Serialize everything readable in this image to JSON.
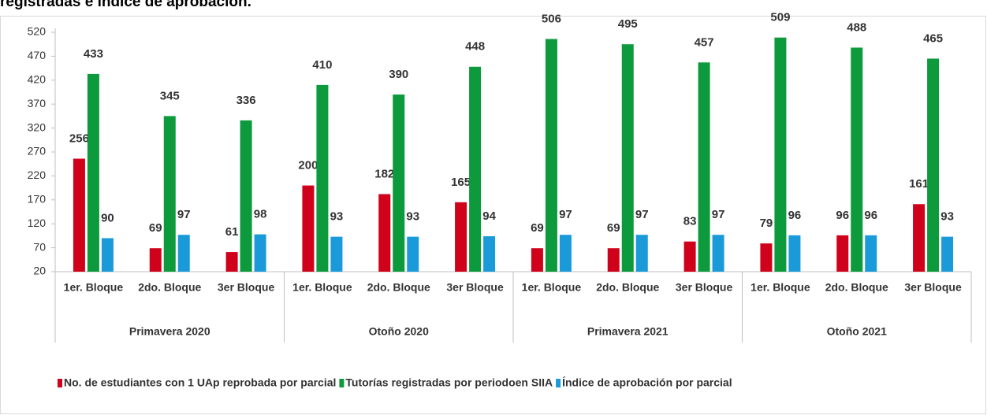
{
  "chart_data": {
    "type": "bar",
    "title": "registradas e índice de aprobación.",
    "categories": [
      "1er. Bloque",
      "2do. Bloque",
      "3er Bloque",
      "1er. Bloque",
      "2do. Bloque",
      "3er Bloque",
      "1er. Bloque",
      "2do. Bloque",
      "3er Bloque",
      "1er. Bloque",
      "2do. Bloque",
      "3er Bloque"
    ],
    "groups": [
      "Primavera 2020",
      "Otoño 2020",
      "Primavera 2021",
      "Otoño 2021"
    ],
    "series": [
      {
        "name": "No. de estudiantes con 1 UAp reprobada por parcial",
        "color": "#d0021b",
        "values": [
          256,
          69,
          61,
          200,
          182,
          165,
          69,
          69,
          83,
          79,
          96,
          161
        ]
      },
      {
        "name": "Tutorías registradas por periodoen SIIA",
        "color": "#0c9a3c",
        "values": [
          433,
          345,
          336,
          410,
          390,
          448,
          506,
          495,
          457,
          509,
          488,
          465
        ]
      },
      {
        "name": "Índice de aprobación por parcial",
        "color": "#1a9ad8",
        "values": [
          90,
          97,
          98,
          93,
          93,
          94,
          97,
          97,
          97,
          96,
          96,
          93
        ]
      }
    ],
    "ylim": [
      20,
      520
    ],
    "yticks": [
      20,
      70,
      120,
      170,
      220,
      270,
      320,
      370,
      420,
      470,
      520
    ],
    "legend": "bottom"
  }
}
